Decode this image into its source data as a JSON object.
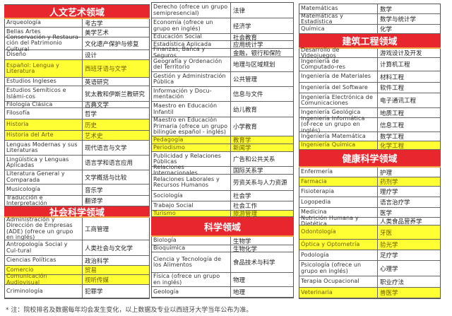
{
  "columns": [
    [
      {
        "header": "人文艺术领域"
      },
      {
        "es": "Arqueología",
        "zh": "考古学"
      },
      {
        "es": "Bellas Artes",
        "zh": "美学艺术"
      },
      {
        "es": "Conservación y Restaura-ción del Patrimonio Cultural",
        "zh": "文化遗产保护与修复"
      },
      {
        "es": "Diseño",
        "zh": "设计"
      },
      {
        "es": "Español: Lengua y Literatura",
        "zh": "西班牙语与文学",
        "highlight": true
      },
      {
        "es": "Estudios Ingleses",
        "zh": "英语研究"
      },
      {
        "es": "Estudios Semíticos e Islámi-cos",
        "zh": "犹太教和伊斯兰教研究"
      },
      {
        "es": "Filología Clásica",
        "zh": "古典文学"
      },
      {
        "es": "Filosofía",
        "zh": "哲学"
      },
      {
        "es": "Historia",
        "zh": "历史",
        "highlight": true
      },
      {
        "es": "Historia del Arte",
        "zh": "艺术史",
        "highlight": true
      },
      {
        "es": "Lenguas Modernas y sus Literaturas",
        "zh": "现代语言与文学"
      },
      {
        "es": "Lingüística y Lenguas Aplicadas",
        "zh": "语言学和语言应用"
      },
      {
        "es": "Literatura General y Comparada",
        "zh": "文学概括与比较"
      },
      {
        "es": "Musicología",
        "zh": "音乐学"
      },
      {
        "es": "Traducción e Interpretación",
        "zh": "翻译学"
      },
      {
        "header": "社会科学领域"
      },
      {
        "es": "Administración y Dirección de Empresas (ADE) (ofrece un grupo en inglés)",
        "zh": "工商管理"
      },
      {
        "es": "Antropología Social y Cul-tural",
        "zh": "人类社会与文化学"
      },
      {
        "es": "Ciencias Políticas",
        "zh": "政治科学"
      },
      {
        "es": "Comercio",
        "zh": "贸易",
        "highlight": true
      },
      {
        "es": "Comunicación Audiovisual",
        "zh": "视听传媒",
        "highlight": true
      },
      {
        "es": "Criminología",
        "zh": "犯罪学"
      }
    ],
    [
      {
        "es": "Derecho (ofrece un grupo semipresencial)",
        "zh": "法律"
      },
      {
        "es": "Economía (ofrece un grupo en inglés)",
        "zh": "经济学"
      },
      {
        "es": "Educación Social",
        "zh": "社会教育"
      },
      {
        "es": "Estadística Aplicada",
        "zh": "应用统计学"
      },
      {
        "es": "Finanzas, Banca y Seguros",
        "zh": "金融，银行和保险"
      },
      {
        "es": "Geografía y Ordenación del Territorio",
        "zh": "地理与区域规划"
      },
      {
        "es": "Gestión y Administración Pública",
        "zh": "公共管理"
      },
      {
        "es": "Información y Docu-mentación",
        "zh": "信息与文件"
      },
      {
        "es": "Maestro en Educación Infantil",
        "zh": "幼儿教育"
      },
      {
        "es": "Maestro en Educación Primaria (ofrece un grupo bilingüe español - inglés)",
        "zh": "小学教育"
      },
      {
        "es": "Pedagogía",
        "zh": "教育学",
        "highlight": true
      },
      {
        "es": "Periodismo",
        "zh": "新闻学",
        "highlight": true
      },
      {
        "es": "Publicidad y Relaciones Públicas",
        "zh": "广告和公共关系"
      },
      {
        "es": "Relaciones Internacionales",
        "zh": "国际关系学"
      },
      {
        "es": "Relaciones Laborales y Recursos Humanos",
        "zh": "劳资关系与人力资源"
      },
      {
        "es": "Sociología",
        "zh": "社会学"
      },
      {
        "es": "Trabajo Social",
        "zh": "社会工作"
      },
      {
        "es": "Turismo",
        "zh": "旅游管理",
        "highlight": true
      },
      {
        "header": "科学领域"
      },
      {
        "es": "Biología",
        "zh": "生物学"
      },
      {
        "es": "Bioquímica",
        "zh": "生物化学"
      },
      {
        "es": "Ciencia y Tecnología de los Alimentos",
        "zh": "食品技术与科学"
      },
      {
        "es": "Física (ofrece un grupo en inglés)",
        "zh": "物理"
      },
      {
        "es": "Geología",
        "zh": "地理"
      }
    ],
    [
      {
        "es": "Matemáticas",
        "zh": "数学"
      },
      {
        "es": "Matemáticas y Estadística",
        "zh": "数学与统计学"
      },
      {
        "es": "Química",
        "zh": "化学"
      },
      {
        "header": "建筑工程领域"
      },
      {
        "es": "Desarrollo de Videojuegos",
        "zh": "游戏设计及开发"
      },
      {
        "es": "Ingeniería de Computado-res",
        "zh": "计算机工程"
      },
      {
        "es": "Ingeniería de Materiales",
        "zh": "材料工程"
      },
      {
        "es": "Ingeniería del Software",
        "zh": "软件工程"
      },
      {
        "es": "Ingeniería Electrónica de Comunicaciones",
        "zh": "电子通讯工程"
      },
      {
        "es": "Ingeniería Geológica",
        "zh": "地质工程"
      },
      {
        "es": "Ingeniería Informática (of-rece un grupo en inglés)",
        "zh": "信息工程"
      },
      {
        "es": "Ingeniería Matemática",
        "zh": "数学工程"
      },
      {
        "es": "Ingeniería Química",
        "zh": "化学工程",
        "highlight": true
      },
      {
        "header": "健康科学领域"
      },
      {
        "es": "Enfermería",
        "zh": "护理"
      },
      {
        "es": "Farmacia",
        "zh": "药剂学",
        "highlight": true
      },
      {
        "es": "Fisioterapia",
        "zh": "理疗学"
      },
      {
        "es": "Logopedia",
        "zh": "语言治疗学"
      },
      {
        "es": "Medicina",
        "zh": "医学"
      },
      {
        "es": "Nutrición Humana y Dietética",
        "zh": "人类食品营养学"
      },
      {
        "es": "Odontología",
        "zh": "牙医",
        "highlight": true
      },
      {
        "es": "Óptica y Optometría",
        "zh": "验光学",
        "highlight": true
      },
      {
        "es": "Podología",
        "zh": "足疗学"
      },
      {
        "es": "Psicología (ofrece un grupo en inglés)",
        "zh": "心理学"
      },
      {
        "es": "Terapia Ocupacional",
        "zh": "职业疗法"
      },
      {
        "es": "Veterinaria",
        "zh": "兽医学",
        "highlight": true
      }
    ]
  ],
  "footnote": "* 注：院校排名及数据每年均会发生变化，以上数据及专业以西班牙大学当年公布为准。",
  "colors": {
    "header": "#e8262e",
    "highlight": "#ffff33"
  }
}
